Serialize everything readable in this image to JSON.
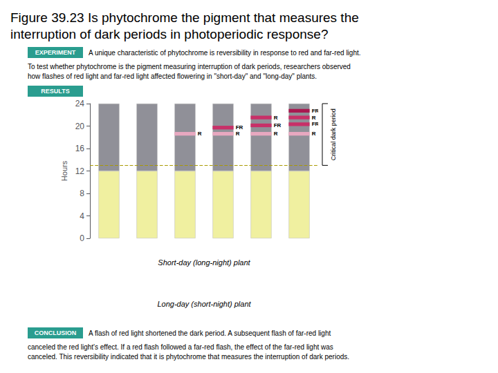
{
  "chart_data": {
    "type": "bar",
    "title": "Figure 39.23 Is phytochrome the pigment that measures the\ninterruption of dark periods in photoperiodic response?",
    "categories": [
      null,
      null,
      null,
      null,
      null,
      null
    ],
    "stacked": true,
    "series": [
      {
        "color": "#f0f0a0",
        "values": [
          12,
          12,
          12,
          12,
          12,
          12
        ]
      },
      {
        "color": "#909098",
        "values": [
          12,
          12,
          12,
          12,
          12,
          12
        ]
      }
    ],
    "flashes": [
      [],
      [],
      [
        {
          "bottom": 18.3,
          "height": 0.65,
          "color": "#e8a8c0",
          "label": "R"
        }
      ],
      [
        {
          "bottom": 19.4,
          "height": 0.65,
          "color": "#c83068",
          "label": "FR"
        },
        {
          "bottom": 18.3,
          "height": 0.65,
          "color": "#e8a8c0",
          "label": "R"
        }
      ],
      [
        {
          "bottom": 21.2,
          "height": 0.65,
          "color": "#c83068",
          "label": "R"
        },
        {
          "bottom": 19.8,
          "height": 0.65,
          "color": "#c83068",
          "label": "FR"
        },
        {
          "bottom": 18.3,
          "height": 0.65,
          "color": "#e8a8c0",
          "label": "R"
        }
      ],
      [
        {
          "bottom": 22.4,
          "height": 0.65,
          "color": "#aa1850",
          "label": "FR"
        },
        {
          "bottom": 21.2,
          "height": 0.65,
          "color": "#c83068",
          "label": "R"
        },
        {
          "bottom": 20.0,
          "height": 0.65,
          "color": "#c83068",
          "label": "FR"
        },
        {
          "bottom": 18.3,
          "height": 0.65,
          "color": "#e8a8c0",
          "label": "R"
        }
      ]
    ],
    "critical_dark": {
      "value": 13.0,
      "label": "Critical dark period",
      "color": "#aa9900"
    },
    "ylabel": "Hours",
    "ylim": [
      0,
      24
    ],
    "yticks": [
      0,
      4,
      8,
      12,
      16,
      20,
      24
    ],
    "grid": false,
    "tick_labels": "y",
    "annotations": [
      {
        "text": "EXPERIMENT",
        "color": "#2a9d8f"
      },
      {
        "text": "A unique characteristic of phytochrome is reversibility in response to red and far-red light."
      },
      {
        "text": "To test whether phytochrome is the pigment measuring interruption of dark periods, researchers observed"
      },
      {
        "text": "how flashes of red light and far-red light affected flowering in \"short-day\" and \"long-day\" plants."
      },
      {
        "text": "RESULTS",
        "color": "#2a9d8f"
      },
      {
        "text": "Short-day (long-night) plant"
      },
      {
        "text": "Long-day (short-night) plant"
      },
      {
        "text": "CONCLUSION",
        "color": "#2a9d8f"
      },
      {
        "text": "A flash of red light shortened the dark period. A subsequent flash of far-red light"
      },
      {
        "text": "canceled the red light's effect. If a red flash followed a far-red flash, the effect of the far-red light was"
      },
      {
        "text": "canceled. This reversibility indicated that it is phytochrome that measures the interruption of dark periods."
      }
    ]
  }
}
